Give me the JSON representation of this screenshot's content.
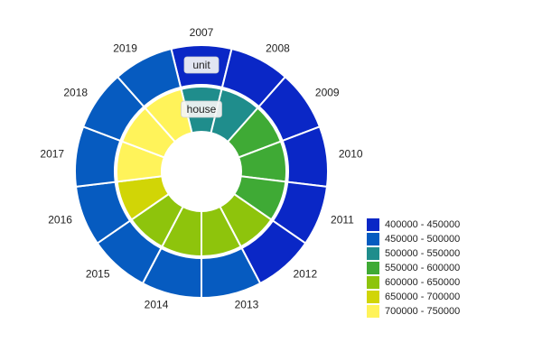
{
  "chart_data": {
    "type": "radial_heatmap",
    "angular_categories": [
      "2007",
      "2008",
      "2009",
      "2010",
      "2011",
      "2012",
      "2013",
      "2014",
      "2015",
      "2016",
      "2017",
      "2018",
      "2019"
    ],
    "rings": [
      {
        "name": "house",
        "label": "house",
        "values": [
          515000,
          520000,
          575000,
          580000,
          585000,
          610000,
          625000,
          620000,
          645000,
          660000,
          705000,
          715000,
          710000
        ]
      },
      {
        "name": "unit",
        "label": "unit",
        "values": [
          420000,
          425000,
          430000,
          435000,
          440000,
          445000,
          460000,
          465000,
          470000,
          475000,
          480000,
          485000,
          480000
        ]
      }
    ],
    "legend": {
      "position": "bottom-right",
      "bins": [
        {
          "label": "400000 - 450000",
          "min": 400000,
          "max": 450000,
          "color": "#0a27c6"
        },
        {
          "label": "450000 - 500000",
          "min": 450000,
          "max": 500000,
          "color": "#065bc0"
        },
        {
          "label": "500000 - 550000",
          "min": 500000,
          "max": 550000,
          "color": "#1f8d8c"
        },
        {
          "label": "550000 - 600000",
          "min": 550000,
          "max": 600000,
          "color": "#3faa35"
        },
        {
          "label": "600000 - 650000",
          "min": 600000,
          "max": 650000,
          "color": "#8ec40c"
        },
        {
          "label": "650000 - 700000",
          "min": 650000,
          "max": 700000,
          "color": "#d1d506"
        },
        {
          "label": "700000 - 750000",
          "min": 700000,
          "max": 750000,
          "color": "#fff35a"
        }
      ]
    },
    "title": "",
    "xlabel": "",
    "ylabel": ""
  }
}
